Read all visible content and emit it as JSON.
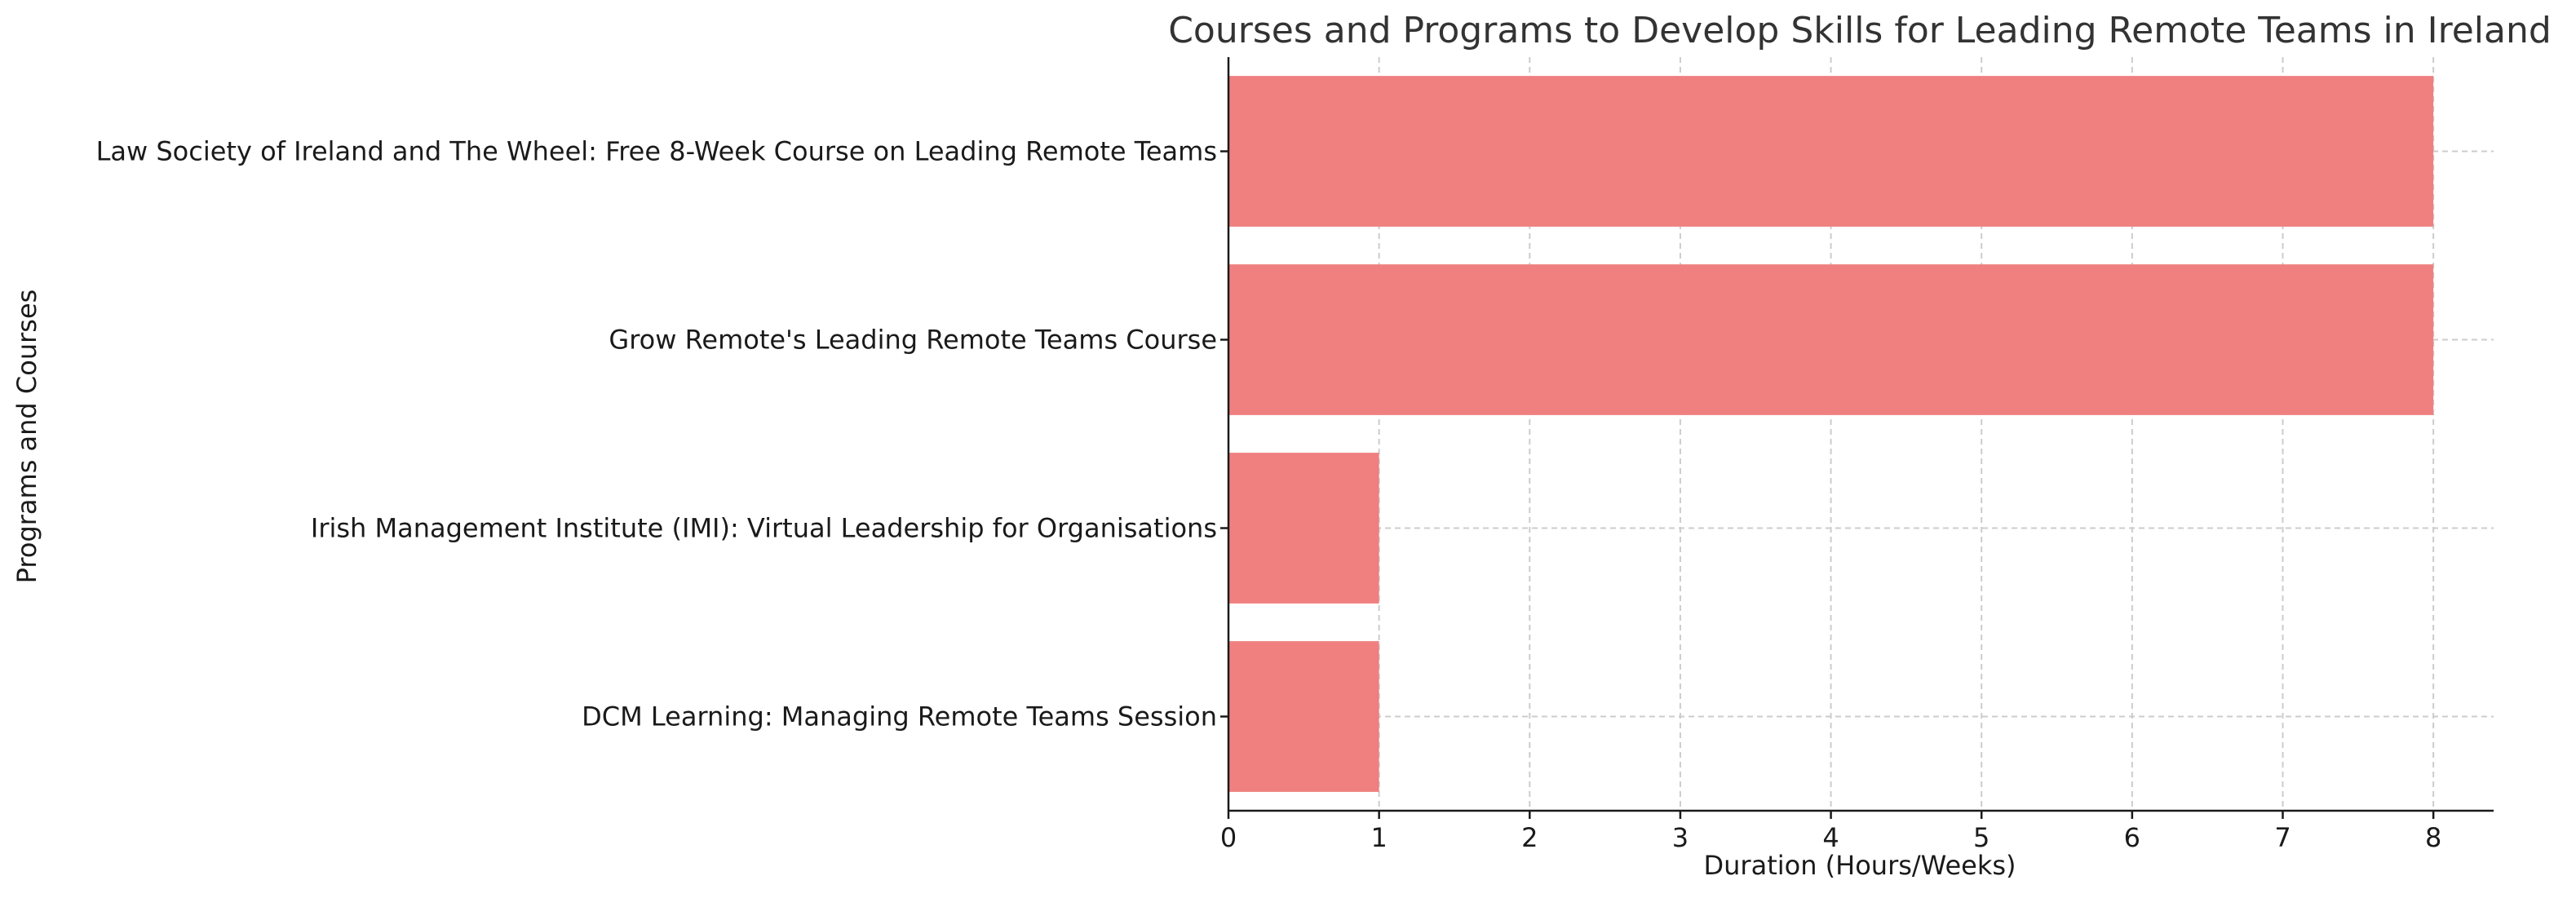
{
  "chart_data": {
    "type": "bar",
    "orientation": "horizontal",
    "title": "Courses and Programs to Develop Skills for Leading Remote Teams in Ireland",
    "xlabel": "Duration (Hours/Weeks)",
    "ylabel": "Programs and Courses",
    "categories": [
      "DCM Learning: Managing Remote Teams Session",
      "Irish Management Institute (IMI): Virtual Leadership for Organisations",
      "Grow Remote's Leading Remote Teams Course",
      "Law Society of Ireland and The Wheel: Free 8-Week Course on Leading Remote Teams"
    ],
    "values": [
      1,
      1,
      8,
      8
    ],
    "xlim": [
      0,
      8.4
    ],
    "xticks": [
      "0",
      "1",
      "2",
      "3",
      "4",
      "5",
      "6",
      "7",
      "8"
    ],
    "grid": true,
    "bar_color": "#f08080"
  }
}
